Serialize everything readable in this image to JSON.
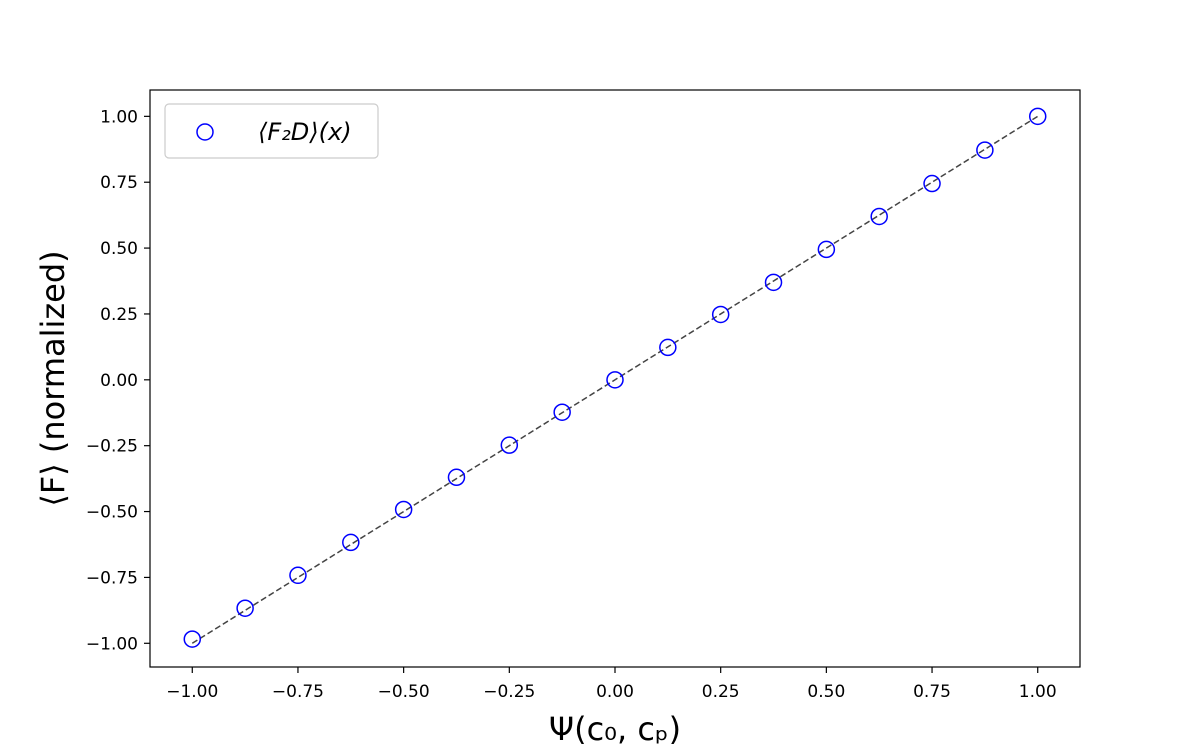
{
  "chart_data": {
    "type": "scatter",
    "xlabel": "Ψ(c₀, cₚ)",
    "ylabel": "⟨F⟩ (normalized)",
    "xlim": [
      -1.1,
      1.1
    ],
    "ylim": [
      -1.09,
      1.1
    ],
    "x_ticks": [
      -1.0,
      -0.75,
      -0.5,
      -0.25,
      0.0,
      0.25,
      0.5,
      0.75,
      1.0
    ],
    "x_tick_labels": [
      "−1.00",
      "−0.75",
      "−0.50",
      "−0.25",
      "0.00",
      "0.25",
      "0.50",
      "0.75",
      "1.00"
    ],
    "y_ticks": [
      -1.0,
      -0.75,
      -0.5,
      -0.25,
      0.0,
      0.25,
      0.5,
      0.75,
      1.0
    ],
    "y_tick_labels": [
      "−1.00",
      "−0.75",
      "−0.50",
      "−0.25",
      "0.00",
      "0.25",
      "0.50",
      "0.75",
      "1.00"
    ],
    "grid": false,
    "legend_position": "top-left",
    "series": [
      {
        "name": "⟨F₂D⟩(x)",
        "marker": "open-circle",
        "color": "#0000ff",
        "x": [
          -1.0,
          -0.875,
          -0.75,
          -0.625,
          -0.5,
          -0.375,
          -0.25,
          -0.125,
          0.0,
          0.125,
          0.25,
          0.375,
          0.5,
          0.625,
          0.75,
          0.875,
          1.0
        ],
        "y": [
          -0.984,
          -0.867,
          -0.742,
          -0.617,
          -0.492,
          -0.37,
          -0.248,
          -0.123,
          0.0,
          0.123,
          0.248,
          0.37,
          0.495,
          0.62,
          0.745,
          0.872,
          1.0
        ]
      }
    ],
    "reference_line": {
      "style": "dashed",
      "color": "#444444",
      "x": [
        -1.0,
        1.0
      ],
      "y": [
        -1.0,
        1.0
      ]
    }
  }
}
